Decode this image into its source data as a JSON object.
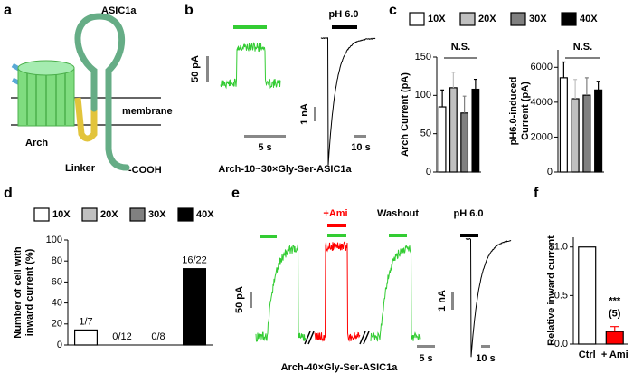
{
  "labels": [
    "a",
    "b",
    "c",
    "d",
    "e",
    "f"
  ],
  "diagram": {
    "protein": "ASIC1a",
    "membrane": "membrane",
    "pump": "Arch",
    "linker": "Linker",
    "terminus": "-COOH"
  },
  "trace_b": {
    "scale_current": "50 pA",
    "scale_time": "5 s",
    "ph_label": "pH 6.0",
    "ph_scale_current": "1 nA",
    "ph_scale_time": "10 s",
    "caption": "Arch-10~30×Gly-Ser-ASIC1a"
  },
  "trace_e": {
    "drug": "+Ami",
    "washout": "Washout",
    "ph_label": "pH 6.0",
    "scale_current": "50 pA",
    "ph_scale_current": "1 nA",
    "scale_time": "5 s",
    "ph_scale_time": "10 s",
    "caption": "Arch-40×Gly-Ser-ASIC1a"
  },
  "chart_data": [
    {
      "type": "bar",
      "ylabel": "Arch Current (pA)",
      "annotation": "N.S.",
      "legend": "top",
      "categories": [
        "10X",
        "20X",
        "30X",
        "40X"
      ],
      "colors": [
        "#ffffff",
        "#c0c0c0",
        "#808080",
        "#000000"
      ],
      "values": [
        85,
        110,
        77,
        108
      ],
      "errors": [
        22,
        20,
        22,
        13
      ],
      "ylim": [
        0,
        150
      ],
      "yticks": [
        0,
        50,
        100,
        150
      ]
    },
    {
      "type": "bar",
      "ylabel": [
        "pH6.0-induced",
        "Current (pA)"
      ],
      "annotation": "N.S.",
      "values": [
        5400,
        4200,
        4400,
        4700
      ],
      "errors": [
        900,
        1100,
        1000,
        500
      ],
      "ylim": [
        0,
        7000
      ],
      "yticks": [
        0,
        2000,
        4000,
        6000
      ]
    },
    {
      "type": "bar",
      "ylabel": [
        "Number of cell with",
        "inward current (%)"
      ],
      "legend": "top",
      "categories": [
        "10X",
        "20X",
        "30X",
        "40X"
      ],
      "colors": [
        "#ffffff",
        "#c0c0c0",
        "#808080",
        "#000000"
      ],
      "values": [
        14.3,
        0,
        0,
        72.7
      ],
      "value_labels": [
        "1/7",
        "0/12",
        "0/8",
        "16/22"
      ],
      "ylim": [
        0,
        100
      ],
      "yticks": [
        0,
        20,
        40,
        60,
        80,
        100
      ]
    },
    {
      "type": "bar",
      "ylabel": "Relative inward current",
      "annotation": "***",
      "n_label": "(5)",
      "categories": [
        "Ctrl",
        "+ Ami"
      ],
      "colors": [
        "#ffffff",
        "#ff0000"
      ],
      "values": [
        1,
        0.13
      ],
      "errors": [
        null,
        0.05
      ],
      "ylim": [
        0,
        1.1
      ],
      "yticks": [
        {
          "value": 0,
          "label": "0.0"
        },
        {
          "value": 0.5,
          "label": "0.5"
        },
        {
          "value": 1,
          "label": "1.0"
        }
      ]
    }
  ]
}
